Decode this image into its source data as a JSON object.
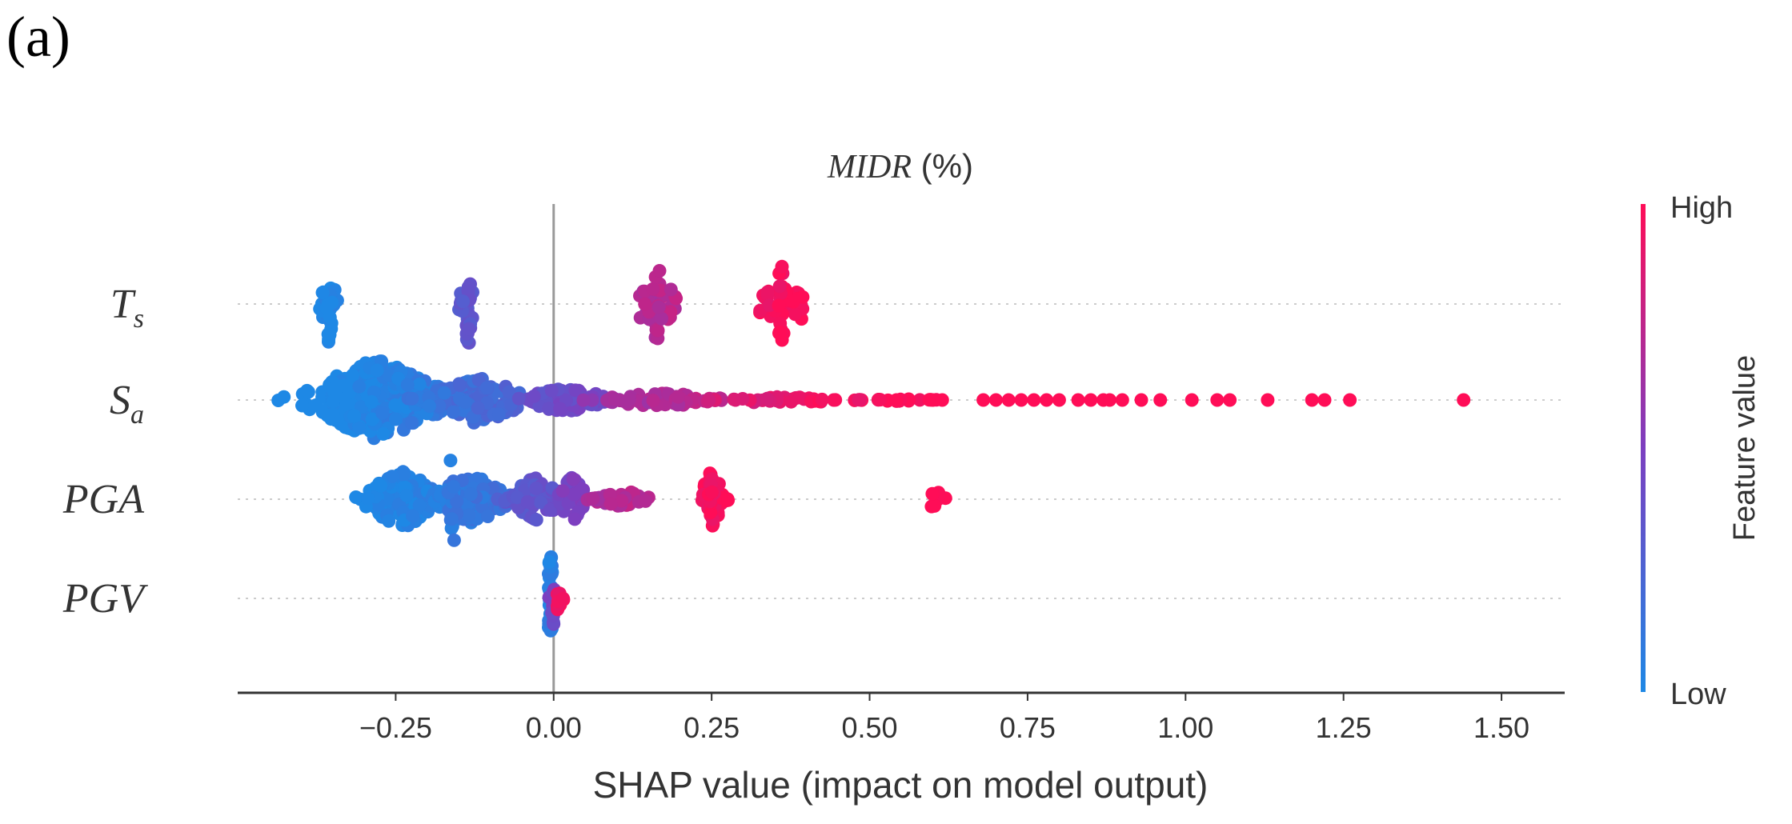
{
  "panel_label": "(a)",
  "colors": {
    "low": "#1e88e5",
    "high": "#ff0d57",
    "axis": "#333333",
    "zero_line": "#999999",
    "grid": "#cccccc"
  },
  "chart_data": {
    "type": "scatter",
    "subtype": "shap-beeswarm",
    "title": {
      "italic": "MIDR",
      "rest": " (%)"
    },
    "xlabel": "SHAP value (impact on model output)",
    "xlim": [
      -0.5,
      1.6
    ],
    "xticks": [
      {
        "value": -0.25,
        "label": "−0.25"
      },
      {
        "value": 0.0,
        "label": "0.00"
      },
      {
        "value": 0.25,
        "label": "0.25"
      },
      {
        "value": 0.5,
        "label": "0.50"
      },
      {
        "value": 0.75,
        "label": "0.75"
      },
      {
        "value": 1.0,
        "label": "1.00"
      },
      {
        "value": 1.25,
        "label": "1.25"
      },
      {
        "value": 1.5,
        "label": "1.50"
      }
    ],
    "colorbar": {
      "label": "Feature value",
      "high_label": "High",
      "low_label": "Low"
    },
    "features": [
      {
        "name": "T",
        "subscript": "s",
        "clusters": [
          {
            "x": -0.355,
            "spread": 0.015,
            "fv": 0.0,
            "n": 40,
            "width": 0.9,
            "shape": "cross"
          },
          {
            "x": -0.135,
            "spread": 0.015,
            "fv": 0.35,
            "n": 40,
            "width": 0.9,
            "shape": "cross"
          },
          {
            "x": 0.165,
            "spread": 0.03,
            "fv": 0.72,
            "n": 60,
            "width": 0.8,
            "shape": "cross"
          },
          {
            "x": 0.36,
            "spread": 0.035,
            "fv": 0.97,
            "n": 70,
            "width": 0.85,
            "shape": "cross"
          }
        ],
        "points": []
      },
      {
        "name": "S",
        "subscript": "a",
        "clusters": [
          {
            "x": -0.28,
            "spread": 0.1,
            "fv": 0.02,
            "n": 300,
            "width": 0.95
          },
          {
            "x": -0.12,
            "spread": 0.07,
            "fv": 0.2,
            "n": 120,
            "width": 0.55
          },
          {
            "x": 0.02,
            "spread": 0.06,
            "fv": 0.42,
            "n": 90,
            "width": 0.3
          },
          {
            "x": 0.17,
            "spread": 0.08,
            "fv": 0.7,
            "n": 60,
            "width": 0.18
          },
          {
            "x": 0.36,
            "spread": 0.09,
            "fv": 0.9,
            "n": 40,
            "width": 0.08
          },
          {
            "x": 0.54,
            "spread": 0.06,
            "fv": 0.97,
            "n": 20,
            "width": 0.03
          }
        ],
        "points": [
          0.6,
          0.615,
          0.68,
          0.7,
          0.72,
          0.74,
          0.76,
          0.78,
          0.8,
          0.83,
          0.85,
          0.87,
          0.88,
          0.9,
          0.93,
          0.96,
          1.01,
          1.05,
          1.07,
          1.13,
          1.2,
          1.22,
          1.26,
          1.44
        ]
      },
      {
        "name": "PGA",
        "subscript": "",
        "clusters": [
          {
            "x": -0.24,
            "spread": 0.05,
            "fv": 0.02,
            "n": 140,
            "width": 0.7
          },
          {
            "x": -0.13,
            "spread": 0.05,
            "fv": 0.12,
            "n": 130,
            "width": 0.6
          },
          {
            "x": -0.16,
            "spread": 0.008,
            "fv": 0.1,
            "n": 25,
            "width": 0.95,
            "shape": "cross"
          },
          {
            "x": -0.03,
            "spread": 0.04,
            "fv": 0.35,
            "n": 80,
            "width": 0.5
          },
          {
            "x": 0.03,
            "spread": 0.02,
            "fv": 0.5,
            "n": 30,
            "width": 0.55
          },
          {
            "x": 0.11,
            "spread": 0.04,
            "fv": 0.72,
            "n": 40,
            "width": 0.2
          },
          {
            "x": 0.25,
            "spread": 0.015,
            "fv": 0.97,
            "n": 45,
            "width": 0.75
          },
          {
            "x": 0.605,
            "spread": 0.015,
            "fv": 1.0,
            "n": 10,
            "width": 0.25
          }
        ],
        "points": []
      },
      {
        "name": "PGV",
        "subscript": "",
        "clusters": [
          {
            "x": -0.005,
            "spread": 0.003,
            "fv": 0.05,
            "n": 35,
            "width": 1.0,
            "shape": "column"
          },
          {
            "x": 0.0,
            "spread": 0.004,
            "fv": 0.45,
            "n": 10,
            "width": 0.6
          },
          {
            "x": 0.008,
            "spread": 0.006,
            "fv": 0.95,
            "n": 10,
            "width": 0.35
          }
        ],
        "points": []
      }
    ]
  }
}
